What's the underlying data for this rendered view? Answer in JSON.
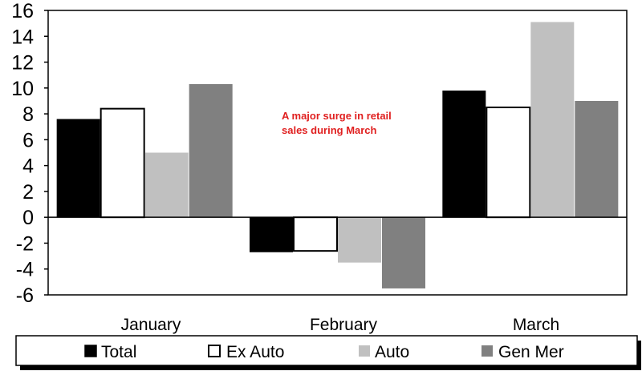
{
  "chart_data": {
    "type": "bar",
    "title": "",
    "xlabel": "",
    "ylabel": "",
    "categories": [
      "January",
      "February",
      "March"
    ],
    "series": [
      {
        "name": "Total",
        "values": [
          7.6,
          -2.7,
          9.8
        ],
        "color": "#000000",
        "fill": "#000000"
      },
      {
        "name": "Ex Auto",
        "values": [
          8.4,
          -2.6,
          8.5
        ],
        "color": "#000000",
        "fill": "#ffffff"
      },
      {
        "name": "Auto",
        "values": [
          5.0,
          -3.5,
          15.1
        ],
        "color": "#c0c0c0",
        "fill": "#c0c0c0"
      },
      {
        "name": "Gen Mer",
        "values": [
          10.3,
          -5.5,
          9.0
        ],
        "color": "#808080",
        "fill": "#808080"
      }
    ],
    "ylim": [
      -6,
      16
    ],
    "yticks": [
      -6,
      -4,
      -2,
      0,
      2,
      4,
      6,
      8,
      10,
      12,
      14,
      16
    ],
    "ytick_labels": [
      "-6",
      "-4",
      "-2",
      "0",
      "2",
      "4",
      "6",
      "8",
      "10",
      "12",
      "14",
      "16"
    ],
    "grid": false,
    "legend_placement": "bottom",
    "annotation": {
      "line1": "A major surge in retail",
      "line2": "sales during March"
    }
  }
}
